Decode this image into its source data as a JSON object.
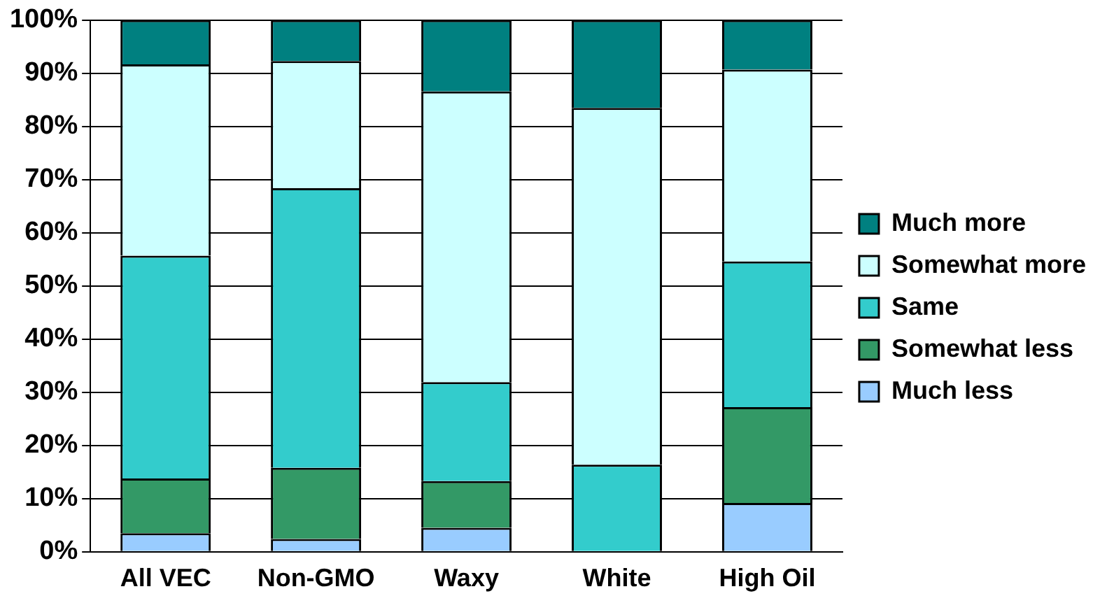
{
  "chart_data": {
    "type": "bar",
    "stacked": true,
    "categories": [
      "All VEC",
      "Non-GMO",
      "Waxy",
      "White",
      "High Oil"
    ],
    "series": [
      {
        "name": "Much less",
        "color": "#99ccff",
        "values": [
          3.5,
          2.4,
          4.5,
          0,
          9.2
        ]
      },
      {
        "name": "Somewhat less",
        "color": "#339966",
        "values": [
          10.3,
          13.4,
          8.8,
          0,
          18
        ]
      },
      {
        "name": "Same",
        "color": "#33cccc",
        "values": [
          41.9,
          52.6,
          18.6,
          16.4,
          27.4
        ]
      },
      {
        "name": "Somewhat more",
        "color": "#ccffff",
        "values": [
          36,
          23.9,
          54.7,
          67.1,
          36.1
        ]
      },
      {
        "name": "Much more",
        "color": "#008080",
        "values": [
          8.3,
          7.7,
          13.4,
          16.5,
          9.3
        ]
      }
    ],
    "ylim": [
      0,
      100
    ],
    "yticks": [
      {
        "value": 0,
        "label": "0%"
      },
      {
        "value": 10,
        "label": "10%"
      },
      {
        "value": 20,
        "label": "20%"
      },
      {
        "value": 30,
        "label": "30%"
      },
      {
        "value": 40,
        "label": "40%"
      },
      {
        "value": 50,
        "label": "50%"
      },
      {
        "value": 60,
        "label": "60%"
      },
      {
        "value": 70,
        "label": "70%"
      },
      {
        "value": 80,
        "label": "80%"
      },
      {
        "value": 90,
        "label": "90%"
      },
      {
        "value": 100,
        "label": "100%"
      }
    ],
    "grid": "y",
    "legend": "right"
  }
}
